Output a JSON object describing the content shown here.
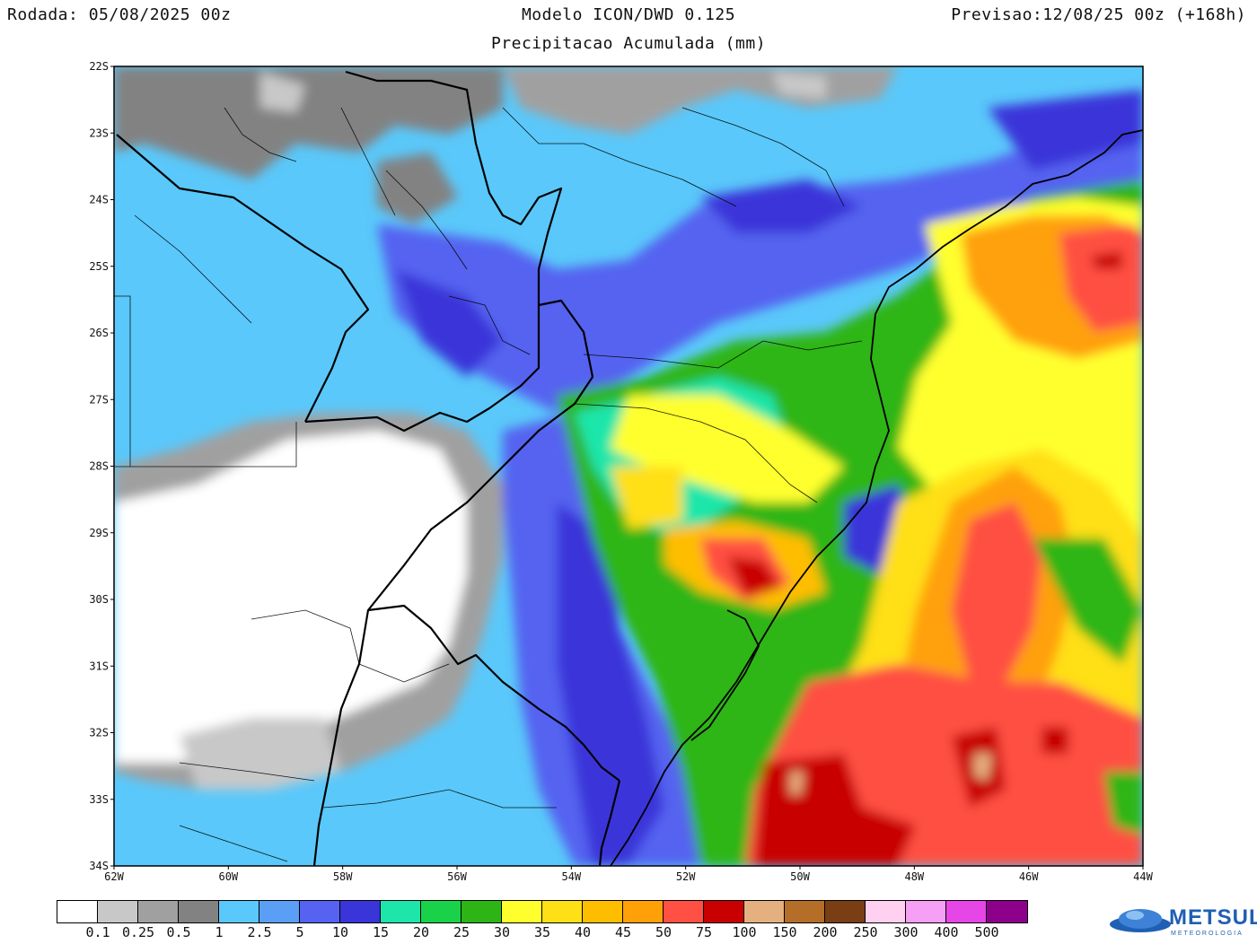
{
  "header": {
    "run": "Rodada: 05/08/2025 00z",
    "model": "Modelo ICON/DWD 0.125",
    "forecast": "Previsao:12/08/25 00z (+168h)",
    "subtitle": "Precipitacao Acumulada (mm)"
  },
  "map": {
    "lat_labels": [
      "22S",
      "23S",
      "24S",
      "25S",
      "26S",
      "27S",
      "28S",
      "29S",
      "30S",
      "31S",
      "32S",
      "33S",
      "34S"
    ],
    "lon_labels": [
      "62W",
      "60W",
      "58W",
      "56W",
      "54W",
      "52W",
      "50W",
      "48W",
      "46W",
      "44W"
    ]
  },
  "legend": {
    "colors": [
      "#ffffff",
      "#c8c8c8",
      "#a0a0a0",
      "#828282",
      "#5ac8fa",
      "#5a9ff5",
      "#5563f0",
      "#3a35d9",
      "#1ee6aa",
      "#1ad24a",
      "#2db516",
      "#ffff2e",
      "#ffdf16",
      "#ffbd00",
      "#ffa008",
      "#ff5043",
      "#c80000",
      "#e5b080",
      "#b46e28",
      "#7a3e14",
      "#ffd0f0",
      "#f5a0f5",
      "#e646e6",
      "#8c008c"
    ],
    "labels": [
      "0.1",
      "0.25",
      "0.5",
      "1",
      "2.5",
      "5",
      "10",
      "15",
      "20",
      "25",
      "30",
      "35",
      "40",
      "45",
      "50",
      "75",
      "100",
      "150",
      "200",
      "250",
      "300",
      "400",
      "500"
    ]
  },
  "logo": {
    "name": "METSUL",
    "tagline": "METEOROLOGIA"
  }
}
